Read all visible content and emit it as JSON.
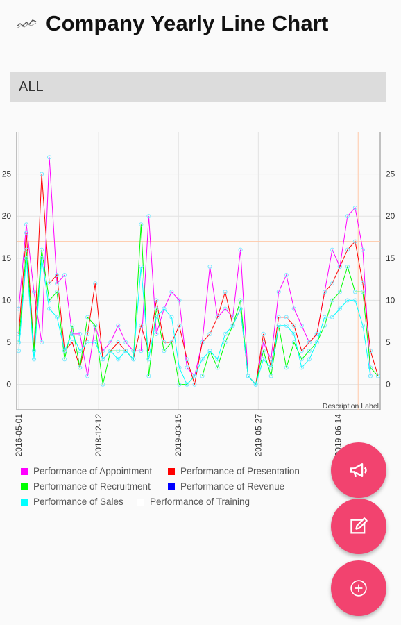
{
  "app": {
    "title": "Company Yearly Line Chart",
    "icon": "line-chart-icon"
  },
  "filter": {
    "selected": "ALL"
  },
  "chart_data": {
    "type": "line",
    "title": "",
    "description": "Description Label",
    "x_tick_labels": [
      "2016-05-01",
      "2018-12-12",
      "2019-03-15",
      "2019-05-27",
      "2019-06-14"
    ],
    "x_tick_indices": [
      0,
      20,
      40,
      60,
      80
    ],
    "ylim": [
      -3,
      30
    ],
    "y_ticks": [
      0,
      5,
      10,
      15,
      20,
      25
    ],
    "limit_line_y": 17,
    "limit_line_x_index": 85,
    "grid": true,
    "legend_placement": "bottom-left",
    "series": [
      {
        "name": "Performance of Appointment",
        "color": "#ff00ff",
        "values": [
          9,
          19,
          11,
          5,
          27,
          12,
          13,
          6,
          6,
          1,
          7,
          4,
          5,
          7,
          5,
          4,
          4,
          20,
          6,
          9,
          11,
          10,
          2,
          1,
          5,
          14,
          8,
          9,
          8,
          16,
          1,
          0,
          5,
          3,
          11,
          13,
          9,
          7,
          5,
          6,
          11,
          16,
          14,
          20,
          21,
          16,
          1,
          1
        ]
      },
      {
        "name": "Performance of Presentation",
        "color": "#ff0000",
        "values": [
          6,
          18,
          4,
          25,
          12,
          13,
          4,
          5,
          2,
          6,
          12,
          3,
          4,
          5,
          4,
          3,
          7,
          4,
          10,
          5,
          5,
          7,
          3,
          0,
          5,
          6,
          8,
          11,
          7,
          9,
          1,
          0,
          6,
          2,
          8,
          8,
          7,
          4,
          5,
          6,
          11,
          12,
          14,
          16,
          17,
          12,
          4,
          1
        ]
      },
      {
        "name": "Performance of Recruitment",
        "color": "#00ff00",
        "values": [
          5,
          16,
          4,
          16,
          10,
          11,
          3,
          7,
          2,
          8,
          7,
          0,
          4,
          4,
          4,
          3,
          19,
          1,
          9,
          4,
          5,
          0,
          0,
          1,
          1,
          4,
          2,
          5,
          7,
          10,
          1,
          0,
          4,
          1,
          7,
          2,
          5,
          3,
          4,
          5,
          7,
          10,
          11,
          14,
          11,
          11,
          2,
          1
        ]
      },
      {
        "name": "Performance of Revenue",
        "color": "#0000ff",
        "values": []
      },
      {
        "name": "Performance of Sales",
        "color": "#00ffff",
        "values": [
          4,
          15,
          3,
          15,
          9,
          8,
          4,
          6,
          4,
          5,
          5,
          3,
          4,
          3,
          4,
          3,
          14,
          3,
          8,
          9,
          8,
          2,
          0,
          1,
          3,
          4,
          3,
          6,
          7,
          9,
          1,
          0,
          3,
          2,
          7,
          7,
          6,
          2,
          3,
          5,
          8,
          8,
          9,
          10,
          10,
          7,
          1,
          1
        ]
      },
      {
        "name": "Performance of Training",
        "color": "#ffffff",
        "values": []
      }
    ]
  },
  "fabs": {
    "announce": "megaphone-icon",
    "edit": "edit-icon",
    "add": "add-circle-icon"
  }
}
